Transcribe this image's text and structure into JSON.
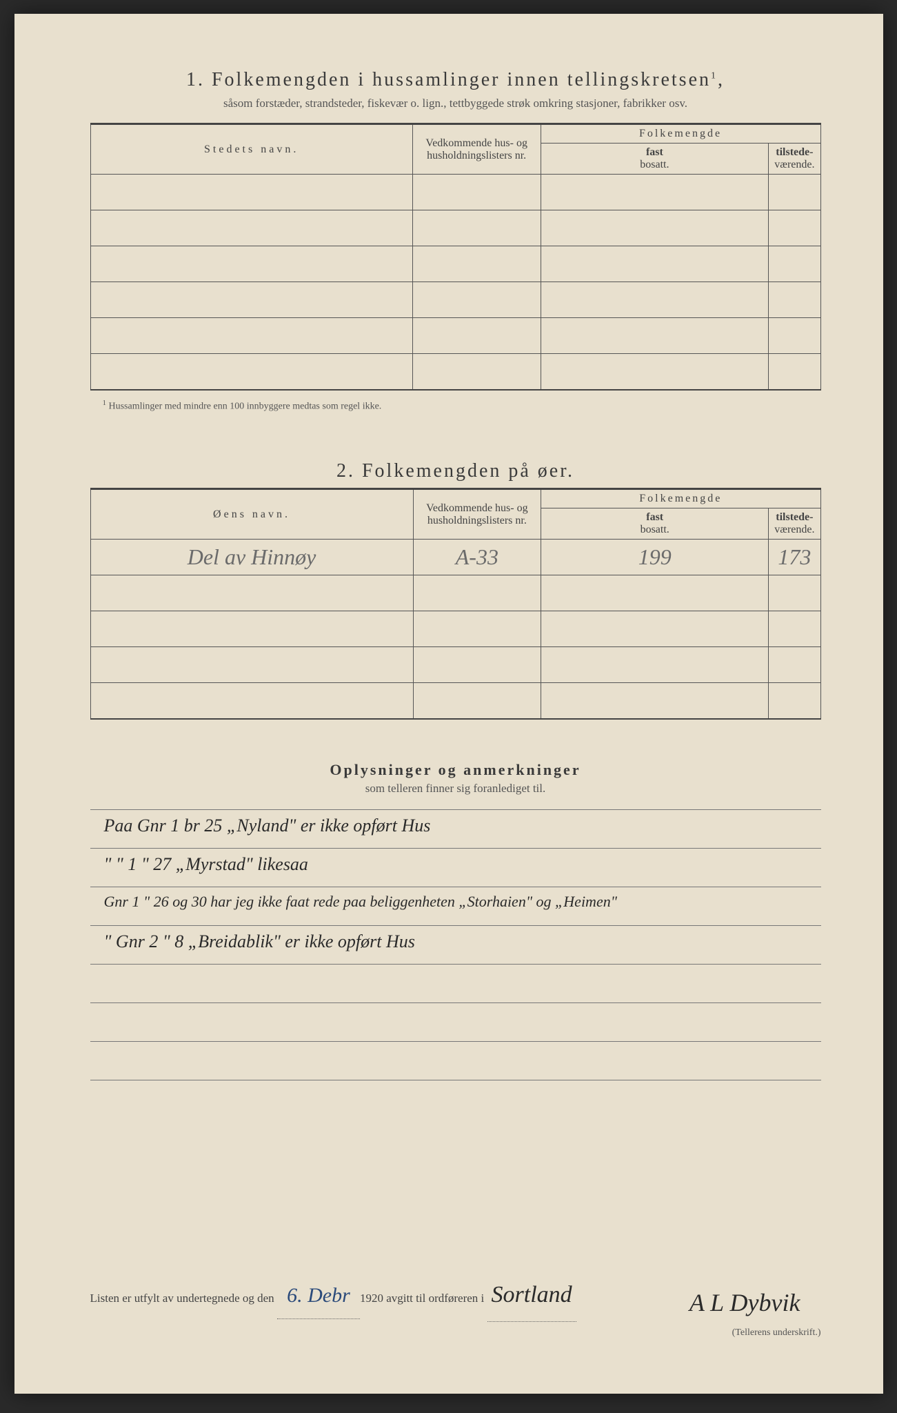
{
  "section1": {
    "number": "1.",
    "title": "Folkemengden i hussamlinger innen tellingskretsen",
    "title_sup": "1",
    "subtitle": "såsom forstæder, strandsteder, fiskevær o. lign., tettbyggede strøk omkring stasjoner, fabrikker osv.",
    "col_name": "Stedets navn.",
    "col_lists": "Vedkommende hus- og husholdningslisters nr.",
    "col_pop": "Folkemengde",
    "col_fast": "fast",
    "col_bosatt": "bosatt.",
    "col_tilst": "tilstede-",
    "col_vaer": "værende.",
    "footnote_num": "1",
    "footnote": "Hussamlinger med mindre enn 100 innbyggere medtas som regel ikke."
  },
  "section2": {
    "number": "2.",
    "title": "Folkemengden på øer.",
    "col_name": "Øens navn.",
    "col_lists": "Vedkommende hus- og husholdningslisters nr.",
    "col_pop": "Folkemengde",
    "col_fast": "fast",
    "col_bosatt": "bosatt.",
    "col_tilst": "tilstede-",
    "col_vaer": "værende.",
    "rows": [
      {
        "name": "Del av Hinnøy",
        "lists": "A-33",
        "fast": "199",
        "tilst": "173"
      }
    ]
  },
  "section3": {
    "title": "Oplysninger og anmerkninger",
    "subtitle": "som telleren finner sig foranlediget til.",
    "lines": [
      "Paa Gnr 1 br 25 „Nyland\" er ikke opført Hus",
      "\"     \"  1  \"  27  „Myrstad\"        likesaa",
      "Gnr 1  \"  26 og 30 har jeg ikke faat rede paa beliggenheten „Storhaien\" og „Heimen\"",
      "\"   Gnr 2  \"  8    „Breidablik\" er ikke opført Hus"
    ]
  },
  "footer": {
    "prefix": "Listen er utfylt av undertegnede og den",
    "date": "6. Debr",
    "year": "1920",
    "middle": "avgitt til ordføreren i",
    "place": "Sortland",
    "signature": "A L Dybvik",
    "sig_label": "(Tellerens underskrift.)"
  }
}
